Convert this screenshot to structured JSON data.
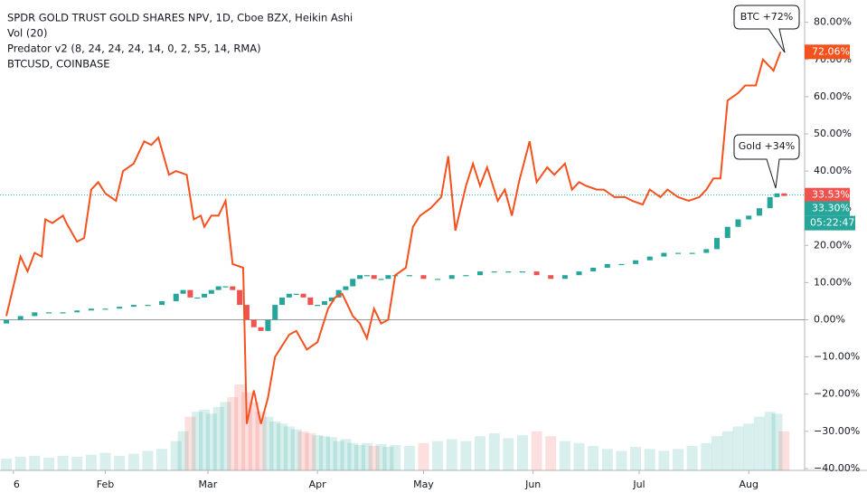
{
  "chart_data": {
    "type": "candlestick",
    "header": [
      "SPDR GOLD TRUST GOLD SHARES NPV, 1D, Cboe BZX, Heikin Ashi",
      "Vol (20)",
      "Predator v2 (8, 24, 24, 24, 14, 0, 2, 55, 14, RMA)",
      "BTCUSD, COINBASE"
    ],
    "xlim": [
      2.2,
      229.8
    ],
    "xticks": [
      {
        "value": 6,
        "label": "6"
      },
      {
        "value": 32,
        "label": "Feb"
      },
      {
        "value": 61,
        "label": "Mar"
      },
      {
        "value": 92,
        "label": "Apr"
      },
      {
        "value": 122,
        "label": "May"
      },
      {
        "value": 153,
        "label": "Jun"
      },
      {
        "value": 183,
        "label": "Jul"
      },
      {
        "value": 214,
        "label": "Aug"
      }
    ],
    "ylim": [
      -40.5,
      86
    ],
    "yticks": [
      {
        "value": 80,
        "label": "80.00%"
      },
      {
        "value": 70,
        "label": "70.00%"
      },
      {
        "value": 60,
        "label": "60.00%"
      },
      {
        "value": 50,
        "label": "50.00%"
      },
      {
        "value": 40,
        "label": "40.00%"
      },
      {
        "value": 30,
        "label": "30.00%"
      },
      {
        "value": 20,
        "label": "20.00%"
      },
      {
        "value": 10,
        "label": "10.00%"
      },
      {
        "value": 0,
        "label": "0.00%"
      },
      {
        "value": -10,
        "label": "−10.00%"
      },
      {
        "value": -20,
        "label": "−20.00%"
      },
      {
        "value": -30,
        "label": "−30.00%"
      },
      {
        "value": -40,
        "label": "−40.00%"
      }
    ],
    "series": [
      {
        "type": "line",
        "color": "#f4511e",
        "x": [
          4,
          8,
          10,
          12,
          14,
          15,
          17,
          20,
          21,
          24,
          26,
          28,
          30,
          32,
          35,
          37,
          40,
          43,
          45,
          47,
          50,
          52,
          55,
          57,
          59,
          60,
          62,
          64,
          66,
          68,
          71,
          72,
          74,
          76,
          78,
          80,
          84,
          86,
          89,
          92,
          95,
          97,
          99,
          102,
          104,
          106,
          108,
          110,
          112,
          114,
          117,
          119,
          121,
          124,
          127,
          129,
          131,
          134,
          136,
          138,
          140,
          143,
          145,
          147,
          149,
          152,
          154,
          157,
          159,
          162,
          164,
          166,
          168,
          171,
          173,
          176,
          179,
          181,
          184,
          186,
          189,
          191,
          194,
          197,
          200,
          202,
          204,
          206,
          208,
          211,
          213,
          216,
          218,
          221,
          223
        ],
        "values": [
          1,
          17,
          13,
          18,
          17,
          27,
          26,
          28,
          26,
          21,
          22,
          35,
          37,
          34,
          32,
          40,
          42,
          48,
          47,
          49,
          39,
          40,
          39,
          27,
          28,
          25,
          28,
          28,
          32,
          15,
          14,
          -28,
          -19,
          -28,
          -21,
          -10,
          -4,
          -3,
          -8,
          -6,
          3,
          6,
          7,
          1,
          -1,
          -5,
          3,
          -1,
          0,
          12,
          14,
          25,
          28,
          30,
          33,
          44,
          24,
          36,
          42,
          36,
          41,
          32,
          35,
          28,
          37,
          48,
          37,
          41,
          39,
          42,
          35,
          37,
          36,
          35,
          35,
          33,
          33,
          32,
          31,
          35,
          33,
          35,
          33,
          32,
          33,
          35,
          38,
          38,
          59,
          61,
          63,
          63,
          70,
          67,
          72.06
        ]
      },
      {
        "type": "candlestick",
        "up_color": "#26a69a",
        "down_color": "#ef5350",
        "x": [
          4,
          8,
          12,
          16,
          20,
          24,
          28,
          32,
          36,
          40,
          44,
          48,
          52,
          54,
          56,
          58,
          60,
          62,
          64,
          66,
          68,
          70,
          72,
          74,
          76,
          78,
          80,
          82,
          84,
          86,
          88,
          90,
          92,
          94,
          96,
          98,
          100,
          102,
          104,
          106,
          108,
          110,
          112,
          114,
          118,
          122,
          126,
          130,
          134,
          138,
          142,
          146,
          150,
          154,
          158,
          162,
          166,
          170,
          174,
          178,
          182,
          186,
          190,
          194,
          198,
          202,
          205,
          208,
          211,
          214,
          217,
          220,
          222,
          224
        ],
        "open": [
          -1,
          0,
          1,
          2,
          2,
          2,
          2.5,
          3,
          3,
          3.5,
          4,
          4,
          5,
          7,
          8,
          6,
          6,
          7,
          8,
          9,
          9,
          8,
          4,
          0,
          -2,
          -3,
          0,
          4,
          6,
          7,
          7,
          6,
          4,
          4,
          5,
          6,
          8,
          9,
          11,
          12,
          12,
          11,
          11,
          12,
          12,
          12,
          11,
          11,
          12,
          12,
          13,
          13,
          13,
          13,
          12,
          11,
          12,
          13,
          14,
          15,
          15,
          16,
          17,
          18,
          18,
          18,
          19,
          22,
          25,
          27,
          28,
          30,
          33,
          34
        ],
        "values": [
          0,
          1,
          2,
          2,
          2,
          2.5,
          3,
          3,
          3.5,
          4,
          4,
          5,
          7,
          8,
          6,
          6,
          7,
          8,
          9,
          9,
          8,
          4,
          0,
          -2,
          -3,
          0,
          4,
          6,
          7,
          7,
          6,
          4,
          4,
          5,
          6,
          8,
          9,
          11,
          12,
          12,
          11,
          11,
          12,
          12,
          12,
          11,
          11,
          12,
          12,
          13,
          13,
          13,
          13,
          12,
          11,
          12,
          13,
          14,
          15,
          15,
          16,
          17,
          18,
          18,
          18,
          19,
          22,
          25,
          27,
          28,
          30,
          33,
          34,
          33.3
        ],
        "volume": [
          12,
          14,
          15,
          13,
          15,
          14,
          16,
          18,
          15,
          17,
          20,
          22,
          30,
          40,
          55,
          60,
          62,
          58,
          65,
          70,
          75,
          88,
          80,
          70,
          60,
          55,
          50,
          48,
          45,
          42,
          40,
          38,
          36,
          35,
          34,
          30,
          32,
          28,
          26,
          28,
          25,
          27,
          24,
          26,
          25,
          28,
          30,
          32,
          30,
          35,
          38,
          33,
          36,
          40,
          35,
          30,
          28,
          25,
          22,
          20,
          24,
          22,
          20,
          22,
          25,
          28,
          35,
          40,
          45,
          48,
          55,
          60,
          58,
          40
        ]
      }
    ],
    "annotations": [
      "BTC +72%",
      "Gold +34%"
    ],
    "price_tags": [
      {
        "label": "72.06%",
        "value": 72.06,
        "color": "#f4511e"
      },
      {
        "label": "33.53%",
        "value": 33.53,
        "color": "#ef5350"
      },
      {
        "label": "33.30%",
        "value": 33.3,
        "color": "#26a69a"
      }
    ],
    "countdown": "05:22:47"
  }
}
